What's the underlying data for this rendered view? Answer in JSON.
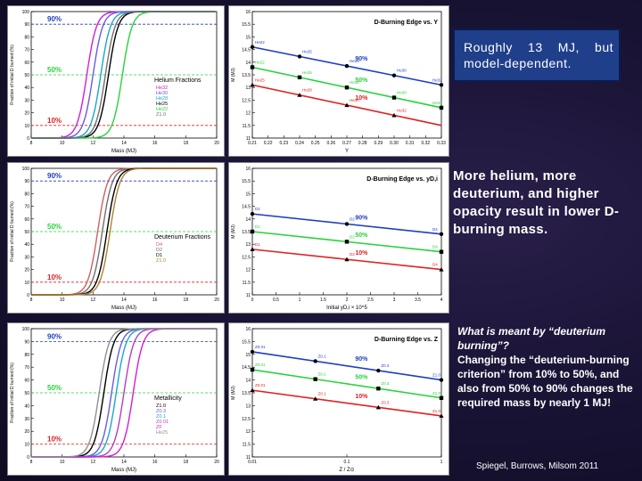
{
  "callout": {
    "text": "Roughly 13 MJ, but model-dependent."
  },
  "conclusion": {
    "text": "More helium, more deuterium, and higher opacity result in lower D-burning mass."
  },
  "question": {
    "title": "What is meant by “deuterium burning”?",
    "body": "Changing the “deuterium-burning criterion” from 10% to 50%, and also from 50% to 90% changes the required mass by nearly 1 MJ!"
  },
  "citation": "Spiegel, Burrows, Milsom 2011",
  "colors": {
    "accent_callout": "#1f3f8a",
    "blue": "#1f3fbf",
    "green": "#28d23c",
    "red": "#e02020"
  },
  "chart_data": [
    {
      "type": "line",
      "title": "Helium Fractions",
      "xlabel": "Mass (MJ)",
      "ylabel": "Fraction of initial D burned (%)",
      "xlim": [
        8,
        20
      ],
      "ylim": [
        0,
        100
      ],
      "xticks": [
        "8",
        "10",
        "12",
        "14",
        "16",
        "18",
        "20"
      ],
      "yticks": [
        "0",
        "10",
        "20",
        "30",
        "40",
        "50",
        "60",
        "70",
        "80",
        "90",
        "100"
      ],
      "levels": [
        "90%",
        "50%",
        "10%"
      ],
      "series": [
        {
          "name": "He32",
          "color": "#d020d0",
          "center": 11.6
        },
        {
          "name": "He30",
          "color": "#6a5ae0",
          "center": 12.0
        },
        {
          "name": "He28",
          "color": "#18a8c8",
          "center": 12.5
        },
        {
          "name": "He25",
          "color": "#000000",
          "center": 13.0
        },
        {
          "name": "He22",
          "color": "#28d23c",
          "center": 13.9
        },
        {
          "name": "Z1.0",
          "color": "#707070",
          "center": 12.8
        }
      ],
      "legend_title": "Helium Fractions"
    },
    {
      "type": "line",
      "title": "D-Burning Edge vs. Y",
      "xlabel": "Y",
      "ylabel": "M (MJ)",
      "xlim": [
        0.21,
        0.33
      ],
      "ylim": [
        11,
        16
      ],
      "xticks": [
        "0.21",
        "0.22",
        "0.23",
        "0.24",
        "0.25",
        "0.26",
        "0.27",
        "0.28",
        "0.29",
        "0.30",
        "0.31",
        "0.32",
        "0.33"
      ],
      "yticks": [
        "11",
        "11.5",
        "12",
        "12.5",
        "13",
        "13.5",
        "14",
        "14.5",
        "15",
        "15.5",
        "16"
      ],
      "series": [
        {
          "name": "90%",
          "color": "#1f3fbf",
          "x": [
            0.21,
            0.33
          ],
          "y": [
            14.6,
            13.1
          ]
        },
        {
          "name": "50%",
          "color": "#28d23c",
          "x": [
            0.21,
            0.33
          ],
          "y": [
            13.8,
            12.2
          ]
        },
        {
          "name": "10%",
          "color": "#e02020",
          "x": [
            0.21,
            0.33
          ],
          "y": [
            13.1,
            11.5
          ]
        }
      ],
      "point_labels": [
        "He22",
        "He22",
        "He25",
        "He25",
        "He25",
        "He28",
        "He28",
        "He28",
        "He30",
        "He30",
        "He30",
        "He32",
        "He32",
        "He32"
      ],
      "series_labels": [
        "90%",
        "50%",
        "10%"
      ]
    },
    {
      "type": "line",
      "title": "Deuterium Fractions",
      "xlabel": "Mass (MJ)",
      "ylabel": "Fraction of initial D burned (%)",
      "xlim": [
        8,
        20
      ],
      "ylim": [
        0,
        100
      ],
      "xticks": [
        "8",
        "10",
        "12",
        "14",
        "16",
        "18",
        "20"
      ],
      "yticks": [
        "0",
        "10",
        "20",
        "30",
        "40",
        "50",
        "60",
        "70",
        "80",
        "90",
        "100"
      ],
      "levels": [
        "90%",
        "50%",
        "10%"
      ],
      "series": [
        {
          "name": "D4",
          "color": "#d06060",
          "center": 12.3
        },
        {
          "name": "D2",
          "color": "#707070",
          "center": 12.6
        },
        {
          "name": "D1",
          "color": "#000000",
          "center": 12.9
        },
        {
          "name": "Z1.0",
          "color": "#b08030",
          "center": 13.1
        }
      ],
      "legend_title": "Deuterium Fractions"
    },
    {
      "type": "line",
      "title": "D-Burning Edge vs. yD,i",
      "xlabel": "Initial yD,i × 10^5",
      "ylabel": "M (MJ)",
      "xlim": [
        0,
        4
      ],
      "ylim": [
        11,
        16
      ],
      "xticks": [
        "0",
        "0.5",
        "1",
        "1.5",
        "2",
        "2.5",
        "3",
        "3.5",
        "4"
      ],
      "yticks": [
        "11",
        "11.5",
        "12",
        "12.5",
        "13",
        "13.5",
        "14",
        "14.5",
        "15",
        "15.5",
        "16"
      ],
      "series": [
        {
          "name": "90%",
          "color": "#1f3fbf",
          "x": [
            0,
            4
          ],
          "y": [
            14.2,
            13.4
          ]
        },
        {
          "name": "50%",
          "color": "#28d23c",
          "x": [
            0,
            4
          ],
          "y": [
            13.5,
            12.7
          ]
        },
        {
          "name": "10%",
          "color": "#e02020",
          "x": [
            0,
            4
          ],
          "y": [
            12.8,
            12.0
          ]
        }
      ],
      "point_labels": [
        "D1",
        "D1",
        "D1",
        "D2",
        "D2",
        "D2",
        "D4",
        "D4",
        "D4"
      ],
      "series_labels": [
        "90%",
        "50%",
        "10%"
      ]
    },
    {
      "type": "line",
      "title": "Metallicity",
      "xlabel": "Mass (MJ)",
      "ylabel": "Fraction of initial D burned (%)",
      "xlim": [
        8,
        20
      ],
      "ylim": [
        0,
        100
      ],
      "xticks": [
        "8",
        "10",
        "12",
        "14",
        "16",
        "18",
        "20"
      ],
      "yticks": [
        "0",
        "10",
        "20",
        "30",
        "40",
        "50",
        "60",
        "70",
        "80",
        "90",
        "100"
      ],
      "levels": [
        "90%",
        "50%",
        "10%"
      ],
      "series": [
        {
          "name": "Z1.0",
          "color": "#000000",
          "center": 12.7
        },
        {
          "name": "Z0.3",
          "color": "#6a5ae0",
          "center": 13.2
        },
        {
          "name": "Z0.1",
          "color": "#18a8c8",
          "center": 13.5
        },
        {
          "name": "Z0.01",
          "color": "#b040c0",
          "center": 14.0
        },
        {
          "name": "ZF",
          "color": "#d020d0",
          "center": 14.6
        },
        {
          "name": "He25",
          "color": "#909090",
          "center": 12.4
        }
      ],
      "legend_title": "Metallicity"
    },
    {
      "type": "line",
      "title": "D-Burning Edge vs. Z",
      "xlabel": "Z / Z⊙",
      "ylabel": "M (MJ)",
      "xlim": [
        0.01,
        1
      ],
      "ylim": [
        11,
        16
      ],
      "xticks": [
        "0.01",
        "0.1",
        "1"
      ],
      "yticks": [
        "11",
        "11.5",
        "12",
        "12.5",
        "13",
        "13.5",
        "14",
        "14.5",
        "15",
        "15.5",
        "16"
      ],
      "series": [
        {
          "name": "90%",
          "color": "#1f3fbf",
          "x": [
            0.01,
            1
          ],
          "y": [
            15.1,
            14.0
          ]
        },
        {
          "name": "50%",
          "color": "#28d23c",
          "x": [
            0.01,
            1
          ],
          "y": [
            14.4,
            13.3
          ]
        },
        {
          "name": "10%",
          "color": "#e02020",
          "x": [
            0.01,
            1
          ],
          "y": [
            13.6,
            12.6
          ]
        }
      ],
      "point_labels": [
        "Z0.01",
        "Z0.01",
        "Z0.01",
        "Z0.1",
        "Z0.1",
        "Z0.1",
        "Z0.3",
        "Z0.3",
        "Z0.3",
        "Z1.0",
        "Z1.0",
        "Z1.0"
      ],
      "series_labels": [
        "90%",
        "50%",
        "10%"
      ]
    }
  ]
}
